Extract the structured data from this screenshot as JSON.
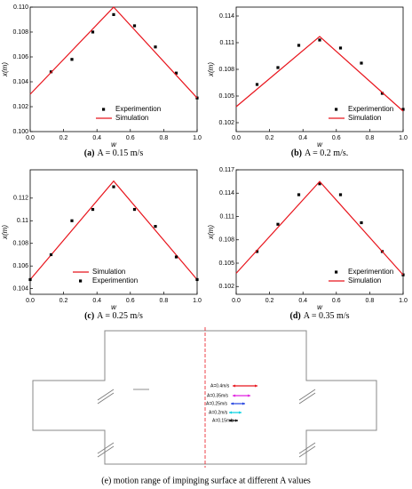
{
  "chart_data": [
    {
      "type": "line",
      "caption_label": "(a)",
      "caption": "A = 0.15 m/s",
      "xlabel": "w",
      "ylabel": "x(m)",
      "xlim": [
        0,
        1
      ],
      "xticks": [
        {
          "value": 0,
          "label": "0.0"
        },
        0.2,
        0.4,
        0.6,
        0.8,
        {
          "value": 1,
          "label": "1.0"
        }
      ],
      "ylim": [
        0.1,
        0.11
      ],
      "yticks": [
        {
          "value": 0.1,
          "label": "0.100"
        },
        {
          "value": 0.102,
          "label": "0.102"
        },
        {
          "value": 0.104,
          "label": "0.104"
        },
        {
          "value": 0.106,
          "label": "0.106"
        },
        {
          "value": 0.108,
          "label": "0.108"
        },
        {
          "value": 0.11,
          "label": "0.110"
        }
      ],
      "legend": "lower center",
      "series": [
        {
          "name": "Experimention",
          "color": "#000000",
          "mode": "markers",
          "x": [
            0.125,
            0.25,
            0.375,
            0.5,
            0.625,
            0.75,
            0.875,
            1.0
          ],
          "values": [
            0.1048,
            0.1058,
            0.108,
            0.1094,
            0.1085,
            0.1068,
            0.1047,
            0.1027
          ]
        },
        {
          "name": "Simulation",
          "color": "#e8141c",
          "mode": "line",
          "x": [
            0,
            0.5,
            1
          ],
          "values": [
            0.103,
            0.11,
            0.1027
          ]
        }
      ]
    },
    {
      "type": "line",
      "caption_label": "(b)",
      "caption": "A = 0.2 m/s.",
      "xlabel": "w",
      "ylabel": "x(m)",
      "xlim": [
        0,
        1
      ],
      "xticks": [
        {
          "value": 0,
          "label": "0.0"
        },
        0.2,
        0.4,
        0.6,
        0.8,
        {
          "value": 1,
          "label": "1.0"
        }
      ],
      "ylim": [
        0.101,
        0.115
      ],
      "yticks": [
        0.102,
        0.105,
        0.108,
        0.111,
        0.114
      ],
      "legend": "lower right",
      "series": [
        {
          "name": "Experimention",
          "color": "#000000",
          "mode": "markers",
          "x": [
            0.125,
            0.25,
            0.375,
            0.5,
            0.625,
            0.75,
            0.875,
            1.0
          ],
          "values": [
            0.1063,
            0.1082,
            0.1107,
            0.1113,
            0.1104,
            0.1087,
            0.1053,
            0.1035
          ]
        },
        {
          "name": "Simulation",
          "color": "#e8141c",
          "mode": "line",
          "x": [
            0,
            0.5,
            1
          ],
          "values": [
            0.1038,
            0.1117,
            0.1033
          ]
        }
      ]
    },
    {
      "type": "line",
      "caption_label": "(c)",
      "caption": "A = 0.25 m/s",
      "xlabel": "w",
      "ylabel": "x(m)",
      "xlim": [
        0,
        1
      ],
      "xticks": [
        {
          "value": 0,
          "label": "0.0"
        },
        0.2,
        0.4,
        0.6,
        0.8,
        {
          "value": 1,
          "label": "1.0"
        }
      ],
      "ylim": [
        0.1035,
        0.1145
      ],
      "yticks": [
        0.104,
        0.106,
        0.108,
        0.11,
        0.112
      ],
      "legend": "lower left",
      "series": [
        {
          "name": "Simulation",
          "color": "#e8141c",
          "mode": "line",
          "x": [
            0,
            0.5,
            1
          ],
          "values": [
            0.1048,
            0.1135,
            0.1048
          ]
        },
        {
          "name": "Experimention",
          "color": "#000000",
          "mode": "markers",
          "x": [
            0,
            0.125,
            0.25,
            0.375,
            0.5,
            0.625,
            0.75,
            0.875,
            1.0
          ],
          "values": [
            0.1048,
            0.107,
            0.11,
            0.111,
            0.113,
            0.111,
            0.1095,
            0.1068,
            0.1048
          ]
        }
      ]
    },
    {
      "type": "line",
      "caption_label": "(d)",
      "caption": "A = 0.35 m/s",
      "xlabel": "w",
      "ylabel": "x(m)",
      "xlim": [
        0,
        1
      ],
      "xticks": [
        {
          "value": 0,
          "label": "0.0"
        },
        0.2,
        0.4,
        0.6,
        0.8,
        {
          "value": 1,
          "label": "1.0"
        }
      ],
      "ylim": [
        0.101,
        0.117
      ],
      "yticks": [
        0.102,
        0.105,
        0.108,
        0.111,
        0.114,
        0.117
      ],
      "legend": "lower right",
      "series": [
        {
          "name": "Experimention",
          "color": "#000000",
          "mode": "markers",
          "x": [
            0.125,
            0.25,
            0.375,
            0.5,
            0.625,
            0.75,
            0.875,
            1.0
          ],
          "values": [
            0.1065,
            0.11,
            0.1138,
            0.1152,
            0.1138,
            0.1102,
            0.1065,
            0.1035
          ]
        },
        {
          "name": "Simulation",
          "color": "#e8141c",
          "mode": "line",
          "x": [
            0,
            0.5,
            1
          ],
          "values": [
            0.1037,
            0.1155,
            0.1035
          ]
        }
      ]
    }
  ],
  "diagram": {
    "caption": "(e) motion range of impinging surface at different A values",
    "labels": [
      "A=0.4m/s",
      "A=0.35m/s",
      "A=0.25m/s",
      "A=0.2m/s",
      "A=0.15m/s"
    ]
  }
}
